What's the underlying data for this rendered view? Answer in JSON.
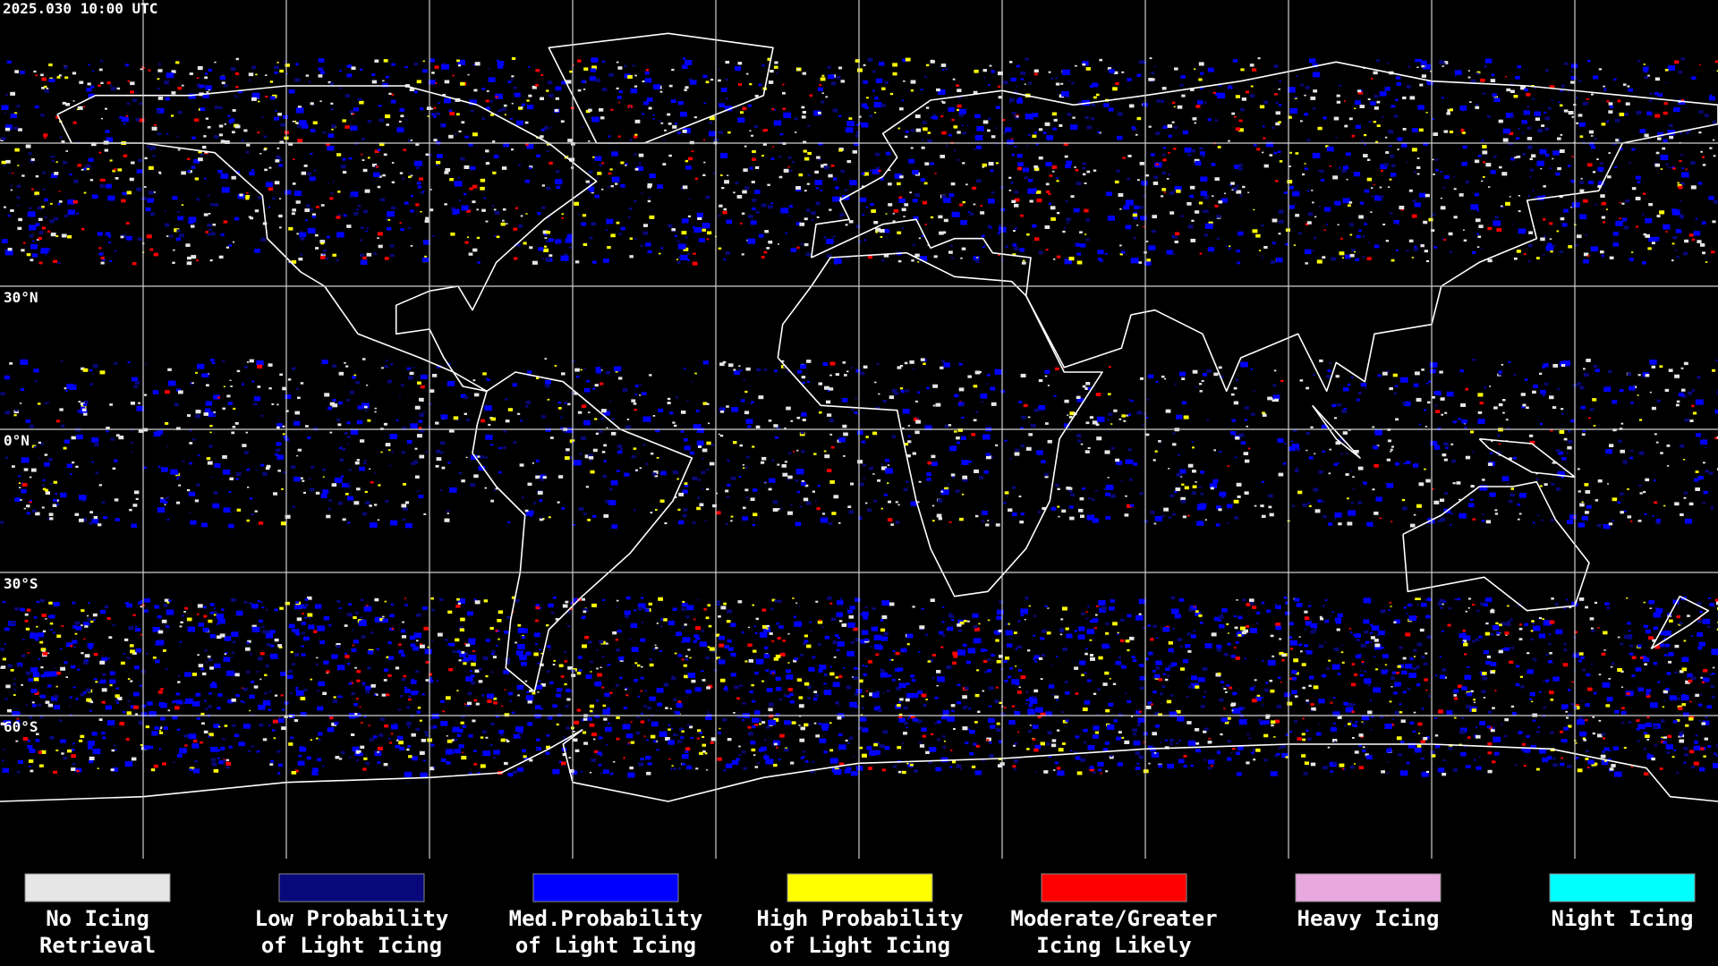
{
  "header": {
    "timestamp": "2025.030 10:00 UTC"
  },
  "map": {
    "latitude_labels": [
      "30°N",
      "0°N",
      "30°S",
      "60°S"
    ]
  },
  "legend": {
    "items": [
      {
        "label": [
          "No Icing",
          "Retrieval"
        ],
        "color": "#e6e6e6"
      },
      {
        "label": [
          "Low Probability",
          "of Light Icing"
        ],
        "color": "#08087a"
      },
      {
        "label": [
          "Med.Probability",
          "of Light Icing"
        ],
        "color": "#0000ff"
      },
      {
        "label": [
          "High Probability",
          "of Light Icing"
        ],
        "color": "#ffff00"
      },
      {
        "label": [
          "Moderate/Greater",
          "Icing Likely"
        ],
        "color": "#ff0000"
      },
      {
        "label": [
          "Heavy Icing"
        ],
        "color": "#e8a8e0"
      },
      {
        "label": [
          "Night Icing"
        ],
        "color": "#00ffff"
      }
    ]
  }
}
